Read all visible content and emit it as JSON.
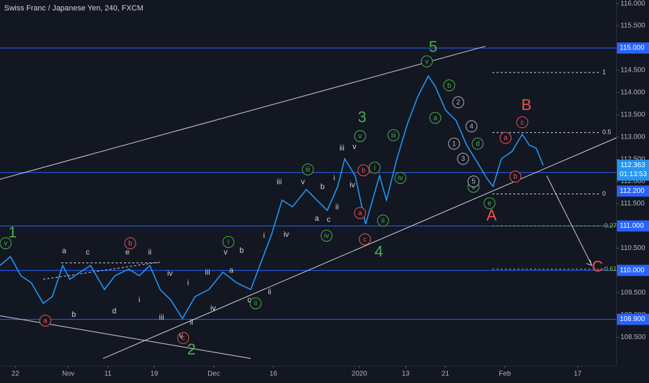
{
  "chart_data": {
    "type": "line",
    "title": "Swiss Franc / Japanese Yen, 240, FXCM",
    "xlim": [
      -2.32,
      90.84
    ],
    "ylim": [
      107.86,
      116.08
    ],
    "xticks": [
      {
        "value": 0,
        "label": "22"
      },
      {
        "value": 8,
        "label": "Nov"
      },
      {
        "value": 14,
        "label": "11"
      },
      {
        "value": 21,
        "label": "19"
      },
      {
        "value": 30,
        "label": "Dec"
      },
      {
        "value": 39,
        "label": "16"
      },
      {
        "value": 52,
        "label": "2020"
      },
      {
        "value": 59,
        "label": "13"
      },
      {
        "value": 65,
        "label": "21"
      },
      {
        "value": 74,
        "label": "Feb"
      },
      {
        "value": 85,
        "label": "17"
      }
    ],
    "yticks": [
      {
        "value": 108.5,
        "label": "108.500"
      },
      {
        "value": 109,
        "label": "109.000"
      },
      {
        "value": 109.5,
        "label": "109.500"
      },
      {
        "value": 110,
        "label": "110.000"
      },
      {
        "value": 110.5,
        "label": "110.500"
      },
      {
        "value": 111,
        "label": "111.000"
      },
      {
        "value": 111.5,
        "label": "111.500"
      },
      {
        "value": 112,
        "label": "112.000"
      },
      {
        "value": 112.5,
        "label": "112.500"
      },
      {
        "value": 113,
        "label": "113.000"
      },
      {
        "value": 113.5,
        "label": "113.500"
      },
      {
        "value": 114,
        "label": "114.000"
      },
      {
        "value": 114.5,
        "label": "114.500"
      },
      {
        "value": 115,
        "label": "115.000"
      },
      {
        "value": 115.5,
        "label": "115.500"
      },
      {
        "value": 116,
        "label": "116.000"
      }
    ],
    "series": [
      {
        "color": "#2196f3",
        "x": [
          -2.32,
          -0.74,
          0.84,
          2.42,
          4.21,
          5.58,
          7.16,
          8.21,
          9.79,
          11.37,
          13.47,
          15.05,
          17.16,
          18.74,
          20.32,
          21.89,
          23.47,
          25.26,
          27.16,
          29.26,
          31.37,
          33.47,
          35.58,
          37.16,
          38.74,
          40.32,
          41.89,
          44,
          45.58,
          47.16,
          48.74,
          49.79,
          51.37,
          52.95,
          54,
          55.05,
          56.11,
          57.68,
          59.26,
          60.84,
          62.42,
          63.47,
          65.05,
          66.63,
          68.21,
          69.79,
          71.37,
          72.21,
          73.47,
          75.05,
          76.63,
          77.68,
          78.74,
          79.79
        ],
        "values": [
          110.11,
          110.31,
          109.88,
          109.72,
          109.26,
          109.41,
          110.11,
          109.8,
          109.96,
          110.11,
          109.57,
          109.88,
          110.03,
          109.88,
          110.11,
          109.57,
          109.34,
          108.92,
          109.41,
          109.57,
          109.96,
          109.72,
          109.57,
          110.19,
          110.81,
          111.58,
          111.43,
          111.82,
          111.58,
          111.35,
          111.89,
          112.51,
          112.13,
          111.04,
          111.58,
          112.13,
          111.58,
          112.51,
          113.29,
          113.91,
          114.37,
          114.14,
          113.6,
          113.37,
          112.82,
          112.44,
          112.05,
          111.89,
          112.51,
          112.67,
          113.06,
          112.82,
          112.75,
          112.36
        ]
      }
    ],
    "last_price": 112.363,
    "countdown": "01:13:53",
    "level_color": "#2962ff",
    "levels": [
      {
        "value": 115,
        "label": "115.000"
      },
      {
        "value": 112.2,
        "label": "112.200"
      },
      {
        "value": 111,
        "label": "111.000"
      },
      {
        "value": 110,
        "label": "110.000"
      },
      {
        "value": 108.9,
        "label": "108.900"
      }
    ],
    "fib_range": [
      72.1,
      88.42
    ],
    "fib_levels": [
      {
        "value": 1,
        "price": 114.45,
        "color": "#d1d4dc"
      },
      {
        "value": 0.5,
        "price": 113.1,
        "color": "#d1d4dc"
      },
      {
        "value": 0,
        "price": 111.72,
        "color": "#d1d4dc"
      },
      {
        "value": -0.27,
        "price": 111.0,
        "color": "#8bc34a"
      },
      {
        "value": -0.61,
        "price": 110.03,
        "color": "#8bc34a"
      }
    ],
    "trend_lines": [
      {
        "from": [
          -2.32,
          112.05
        ],
        "to": [
          71.05,
          115.04
        ],
        "dashed": false
      },
      {
        "from": [
          13.26,
          108.02
        ],
        "to": [
          90.84,
          112.98
        ],
        "dashed": false
      },
      {
        "from": [
          -2.32,
          108.98
        ],
        "to": [
          35.58,
          108.02
        ],
        "dashed": false
      },
      {
        "from": [
          4.21,
          109.8
        ],
        "to": [
          21.89,
          110.19
        ],
        "dashed": true
      },
      {
        "from": [
          6.95,
          110.17
        ],
        "to": [
          21.68,
          110.17
        ],
        "dashed": true
      },
      {
        "from": [
          80.32,
          112.13
        ],
        "to": [
          87.16,
          110.11
        ],
        "dashed": false
      }
    ],
    "label_groups": [
      {
        "color": "#4caf50",
        "circled": false,
        "major": true,
        "labels": [
          {
            "text": "1",
            "x": -0.42,
            "y": 110.85
          },
          {
            "text": "2",
            "x": 26.63,
            "y": 108.22
          },
          {
            "text": "3",
            "x": 52.42,
            "y": 113.44
          },
          {
            "text": "4",
            "x": 54.95,
            "y": 110.42
          },
          {
            "text": "5",
            "x": 63.16,
            "y": 115.02
          }
        ]
      },
      {
        "color": "#ef5350",
        "circled": false,
        "major": true,
        "labels": [
          {
            "text": "A",
            "x": 72.0,
            "y": 111.23
          },
          {
            "text": "B",
            "x": 77.26,
            "y": 113.71
          },
          {
            "text": "C",
            "x": 88.0,
            "y": 110.08
          }
        ]
      },
      {
        "color": "#4caf50",
        "circled": true,
        "major": false,
        "labels": [
          {
            "text": "v",
            "x": -1.47,
            "y": 110.61
          },
          {
            "text": "i",
            "x": 32.21,
            "y": 110.64
          },
          {
            "text": "ii",
            "x": 36.32,
            "y": 109.26
          },
          {
            "text": "iii",
            "x": 44.21,
            "y": 112.27
          },
          {
            "text": "iv",
            "x": 47.05,
            "y": 110.78
          },
          {
            "text": "v",
            "x": 52.11,
            "y": 113.02
          },
          {
            "text": "i",
            "x": 54.32,
            "y": 112.31
          },
          {
            "text": "ii",
            "x": 55.58,
            "y": 111.12
          },
          {
            "text": "iii",
            "x": 57.16,
            "y": 113.04
          },
          {
            "text": "iv",
            "x": 58.21,
            "y": 112.08
          },
          {
            "text": "v",
            "x": 62.21,
            "y": 114.7
          },
          {
            "text": "b",
            "x": 65.58,
            "y": 114.16
          },
          {
            "text": "a",
            "x": 63.47,
            "y": 113.43
          },
          {
            "text": "d",
            "x": 69.89,
            "y": 112.85
          },
          {
            "text": "e",
            "x": 71.68,
            "y": 111.51
          },
          {
            "text": "c",
            "x": 69.26,
            "y": 111.88
          }
        ]
      },
      {
        "color": "#ef5350",
        "circled": true,
        "major": false,
        "labels": [
          {
            "text": "a",
            "x": 4.53,
            "y": 108.87
          },
          {
            "text": "b",
            "x": 17.37,
            "y": 110.61
          },
          {
            "text": "c",
            "x": 25.37,
            "y": 108.48
          },
          {
            "text": "a",
            "x": 52.11,
            "y": 111.29
          },
          {
            "text": "b",
            "x": 52.63,
            "y": 112.25
          },
          {
            "text": "c",
            "x": 52.84,
            "y": 110.7
          },
          {
            "text": "a",
            "x": 74.11,
            "y": 112.98
          },
          {
            "text": "c",
            "x": 76.63,
            "y": 113.33
          },
          {
            "text": "b",
            "x": 75.58,
            "y": 112.11
          }
        ]
      },
      {
        "color": "#b2b5be",
        "circled": true,
        "major": false,
        "labels": [
          {
            "text": "2",
            "x": 66.95,
            "y": 113.78
          },
          {
            "text": "4",
            "x": 68.95,
            "y": 113.24
          },
          {
            "text": "1",
            "x": 66.32,
            "y": 112.85
          },
          {
            "text": "3",
            "x": 67.68,
            "y": 112.51
          },
          {
            "text": "5",
            "x": 69.26,
            "y": 112.0
          }
        ]
      },
      {
        "color": "#d1d4dc",
        "circled": false,
        "major": false,
        "labels": [
          {
            "text": "a",
            "x": 7.37,
            "y": 110.44
          },
          {
            "text": "c",
            "x": 10.95,
            "y": 110.41
          },
          {
            "text": "e",
            "x": 16.95,
            "y": 110.41
          },
          {
            "text": "ii",
            "x": 20.32,
            "y": 110.41
          },
          {
            "text": "b",
            "x": 8.84,
            "y": 109.01
          },
          {
            "text": "d",
            "x": 14.95,
            "y": 109.09
          },
          {
            "text": "i",
            "x": 18.74,
            "y": 109.34
          },
          {
            "text": "iii",
            "x": 22.11,
            "y": 108.95
          },
          {
            "text": "iv",
            "x": 23.37,
            "y": 109.93
          },
          {
            "text": "i",
            "x": 26.11,
            "y": 109.72
          },
          {
            "text": "v",
            "x": 31.79,
            "y": 110.41
          },
          {
            "text": "b",
            "x": 34.21,
            "y": 110.45
          },
          {
            "text": "iii",
            "x": 29.05,
            "y": 109.96
          },
          {
            "text": "a",
            "x": 32.63,
            "y": 110.0
          },
          {
            "text": "iv",
            "x": 29.89,
            "y": 109.15
          },
          {
            "text": "ii",
            "x": 26.63,
            "y": 108.84
          },
          {
            "text": "v",
            "x": 25.05,
            "y": 108.53
          },
          {
            "text": "iii",
            "x": 39.89,
            "y": 111.99
          },
          {
            "text": "iv",
            "x": 40.95,
            "y": 110.81
          },
          {
            "text": "i",
            "x": 37.58,
            "y": 110.79
          },
          {
            "text": "v",
            "x": 43.47,
            "y": 111.99
          },
          {
            "text": "b",
            "x": 46.42,
            "y": 111.88
          },
          {
            "text": "i",
            "x": 48.21,
            "y": 112.08
          },
          {
            "text": "a",
            "x": 45.58,
            "y": 111.17
          },
          {
            "text": "c",
            "x": 47.37,
            "y": 111.15
          },
          {
            "text": "ii",
            "x": 48.63,
            "y": 111.43
          },
          {
            "text": "iii",
            "x": 49.37,
            "y": 112.75
          },
          {
            "text": "v",
            "x": 51.26,
            "y": 112.78
          },
          {
            "text": "iv",
            "x": 50.95,
            "y": 111.92
          },
          {
            "text": "ii",
            "x": 38.42,
            "y": 109.52
          },
          {
            "text": "c",
            "x": 35.37,
            "y": 109.34
          }
        ]
      }
    ]
  }
}
